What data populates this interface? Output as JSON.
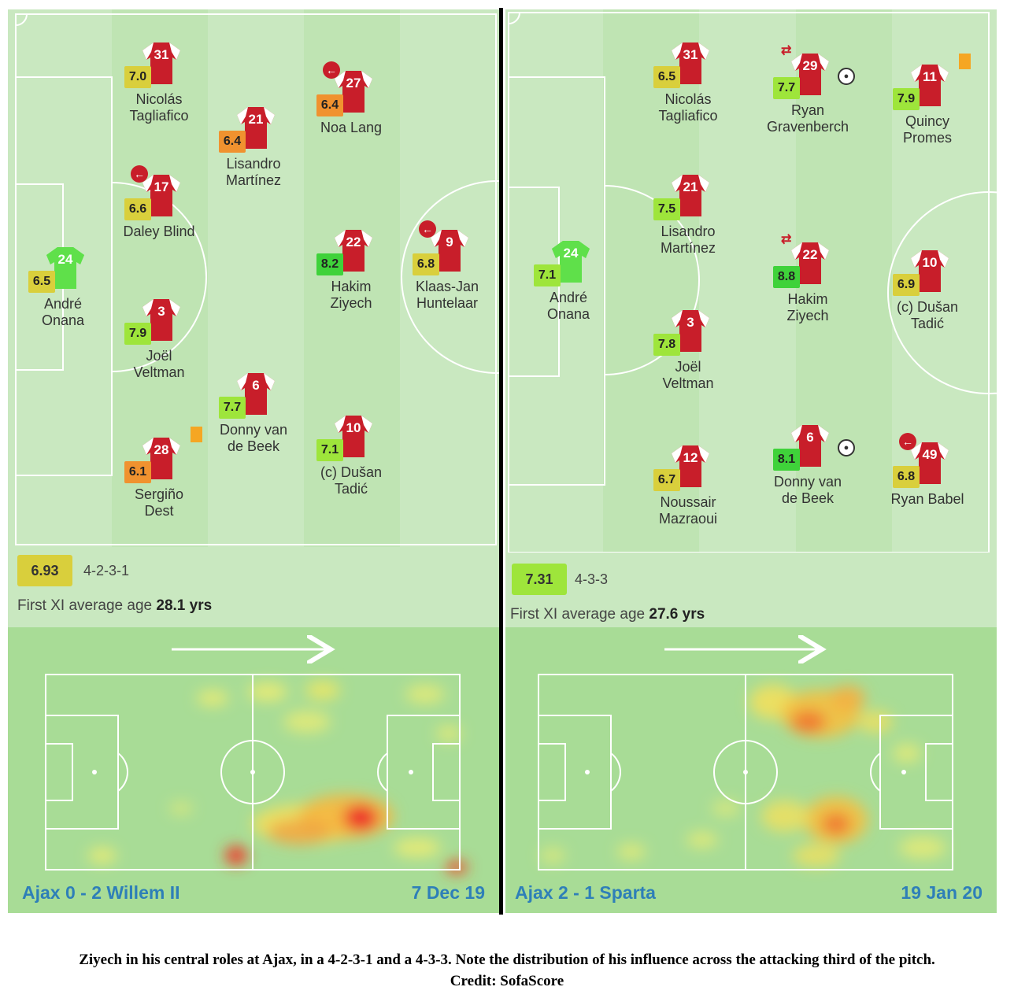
{
  "colors": {
    "rating_green_dark": "#3fd23a",
    "rating_green": "#9ee53b",
    "rating_yellow": "#d9cf3c",
    "rating_orange": "#f0922f",
    "ajax_red": "#c81e2a",
    "goalkeeper_green": "#5fe04a",
    "title_blue": "#2e7fb8"
  },
  "left": {
    "players": [
      {
        "number": "31",
        "rating": "7.0",
        "name": "Nicolás\nTagliafico",
        "rating_color": "yellow"
      },
      {
        "number": "17",
        "rating": "6.6",
        "name": "Daley Blind",
        "rating_color": "yellow",
        "icon": "sub-out"
      },
      {
        "number": "3",
        "rating": "7.9",
        "name": "Joël\nVeltman",
        "rating_color": "green"
      },
      {
        "number": "28",
        "rating": "6.1",
        "name": "Sergiño\nDest",
        "rating_color": "orange",
        "icon": "yellow-card"
      },
      {
        "number": "24",
        "rating": "6.5",
        "name": "André\nOnana",
        "rating_color": "yellow",
        "goalkeeper": true
      },
      {
        "number": "21",
        "rating": "6.4",
        "name": "Lisandro\nMartínez",
        "rating_color": "orange"
      },
      {
        "number": "6",
        "rating": "7.7",
        "name": "Donny van\nde Beek",
        "rating_color": "green"
      },
      {
        "number": "27",
        "rating": "6.4",
        "name": "Noa Lang",
        "rating_color": "orange",
        "icon": "sub-out"
      },
      {
        "number": "22",
        "rating": "8.2",
        "name": "Hakim\nZiyech",
        "rating_color": "green_dark"
      },
      {
        "number": "10",
        "rating": "7.1",
        "name": "(c) Dušan\nTadić",
        "rating_color": "green"
      },
      {
        "number": "9",
        "rating": "6.8",
        "name": "Klaas-Jan\nHuntelaar",
        "rating_color": "yellow",
        "icon": "sub-out"
      }
    ],
    "avg_rating": "6.93",
    "formation": "4-2-3-1",
    "age_label": "First XI average age",
    "age_value": "28.1 yrs",
    "score": "Ajax 0 - 2 Willem II",
    "date": "7 Dec 19"
  },
  "right": {
    "players": [
      {
        "number": "31",
        "rating": "6.5",
        "name": "Nicolás\nTagliafico",
        "rating_color": "yellow"
      },
      {
        "number": "21",
        "rating": "7.5",
        "name": "Lisandro\nMartínez",
        "rating_color": "green"
      },
      {
        "number": "3",
        "rating": "7.8",
        "name": "Joël\nVeltman",
        "rating_color": "green"
      },
      {
        "number": "12",
        "rating": "6.7",
        "name": "Noussair\nMazraoui",
        "rating_color": "yellow"
      },
      {
        "number": "24",
        "rating": "7.1",
        "name": "André\nOnana",
        "rating_color": "green",
        "goalkeeper": true
      },
      {
        "number": "29",
        "rating": "7.7",
        "name": "Ryan\nGravenberch",
        "rating_color": "green",
        "icon": "sub-in-goal"
      },
      {
        "number": "22",
        "rating": "8.8",
        "name": "Hakim\nZiyech",
        "rating_color": "green_dark",
        "icon": "sub-in"
      },
      {
        "number": "6",
        "rating": "8.1",
        "name": "Donny van\nde Beek",
        "rating_color": "green_dark",
        "icon": "goal"
      },
      {
        "number": "11",
        "rating": "7.9",
        "name": "Quincy\nPromes",
        "rating_color": "green",
        "icon": "yellow-card"
      },
      {
        "number": "10",
        "rating": "6.9",
        "name": "(c) Dušan\nTadić",
        "rating_color": "yellow"
      },
      {
        "number": "49",
        "rating": "6.8",
        "name": "Ryan Babel",
        "rating_color": "yellow",
        "icon": "sub-out"
      }
    ],
    "avg_rating": "7.31",
    "formation": "4-3-3",
    "age_label": "First XI average age",
    "age_value": "27.6 yrs",
    "score": "Ajax 2 - 1 Sparta",
    "date": "19 Jan 20"
  },
  "caption": {
    "line1": "Ziyech in his central roles at Ajax, in a 4-2-3-1 and a 4-3-3. Note the distribution of his influence across the attacking third of the pitch.",
    "line2": "Credit: SofaScore"
  }
}
